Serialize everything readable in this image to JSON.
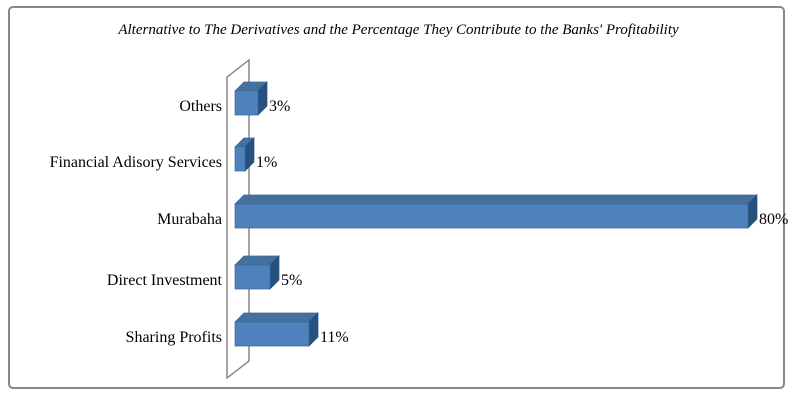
{
  "chart_data": {
    "type": "bar",
    "orientation": "horizontal",
    "style": "3d",
    "title": "Alternative to The Derivatives  and the Percentage They Contribute to the Banks' Profitability",
    "categories": [
      "Others",
      "Financial Adisory Services",
      "Murabaha",
      "Direct Investment",
      "Sharing Profits"
    ],
    "values": [
      3,
      1,
      80,
      5,
      11
    ],
    "value_labels": [
      "3%",
      "1%",
      "80%",
      "5%",
      "11%"
    ],
    "xlabel": "",
    "ylabel": "",
    "xlim": [
      0,
      80
    ],
    "grid": false,
    "legend": false,
    "unit": "percent",
    "colors": {
      "bar_front": "#4f81bd",
      "bar_top": "#44709d",
      "bar_side": "#26507e",
      "bar_edge": "#3c6899",
      "axis_wall": "#7f7f7f",
      "frame_border": "#878787",
      "text": "#000000"
    }
  }
}
